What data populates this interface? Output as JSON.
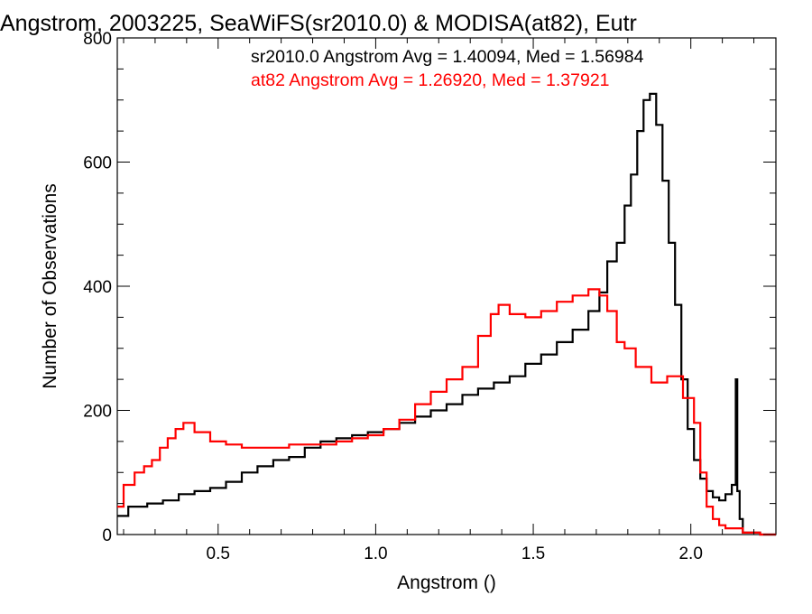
{
  "chart_data": {
    "type": "line",
    "title": "Angstrom, 2003225, SeaWiFS(sr2010.0) & MODISA(at82), Eutr",
    "xlabel": "Angstrom ()",
    "ylabel": "Number of Observations",
    "xlim": [
      0.18,
      2.27
    ],
    "ylim": [
      0,
      800
    ],
    "x_ticks": [
      0.5,
      1.0,
      1.5,
      2.0
    ],
    "x_tick_labels": [
      "0.5",
      "1.0",
      "1.5",
      "2.0"
    ],
    "y_ticks": [
      0,
      200,
      400,
      600,
      800
    ],
    "y_tick_labels": [
      "0",
      "200",
      "400",
      "600",
      "800"
    ],
    "step": true,
    "grid": false,
    "annotations": [
      {
        "text": "sr2010.0 Angstrom Avg = 1.40094, Med = 1.56984",
        "color": "#000000"
      },
      {
        "text": "at82 Angstrom Avg = 1.26920, Med = 1.37921",
        "color": "#ff0000"
      }
    ],
    "series": [
      {
        "color": "#000000",
        "x": [
          0.18,
          0.25,
          0.3,
          0.35,
          0.4,
          0.45,
          0.5,
          0.55,
          0.6,
          0.65,
          0.7,
          0.75,
          0.8,
          0.85,
          0.9,
          0.95,
          1.0,
          1.05,
          1.1,
          1.15,
          1.2,
          1.25,
          1.3,
          1.35,
          1.4,
          1.45,
          1.5,
          1.55,
          1.6,
          1.65,
          1.7,
          1.72,
          1.75,
          1.78,
          1.8,
          1.82,
          1.84,
          1.86,
          1.88,
          1.9,
          1.92,
          1.94,
          1.96,
          1.98,
          2.0,
          2.02,
          2.04,
          2.06,
          2.08,
          2.1,
          2.12,
          2.14,
          2.145,
          2.15,
          2.16,
          2.17,
          2.27
        ],
        "y": [
          30,
          45,
          50,
          55,
          65,
          70,
          75,
          85,
          100,
          110,
          120,
          125,
          140,
          150,
          155,
          160,
          165,
          170,
          180,
          190,
          200,
          210,
          225,
          235,
          245,
          255,
          275,
          290,
          310,
          330,
          360,
          390,
          440,
          470,
          530,
          580,
          650,
          700,
          710,
          660,
          570,
          470,
          370,
          250,
          170,
          120,
          90,
          70,
          60,
          55,
          65,
          80,
          250,
          70,
          25,
          3,
          0
        ]
      },
      {
        "color": "#ff0000",
        "x": [
          0.18,
          0.22,
          0.25,
          0.28,
          0.3,
          0.33,
          0.35,
          0.38,
          0.4,
          0.45,
          0.5,
          0.55,
          0.6,
          0.65,
          0.7,
          0.75,
          0.8,
          0.85,
          0.9,
          0.95,
          1.0,
          1.05,
          1.1,
          1.15,
          1.2,
          1.25,
          1.3,
          1.35,
          1.38,
          1.4,
          1.45,
          1.5,
          1.55,
          1.6,
          1.65,
          1.7,
          1.72,
          1.75,
          1.78,
          1.8,
          1.85,
          1.9,
          1.95,
          2.0,
          2.02,
          2.04,
          2.06,
          2.08,
          2.1,
          2.12,
          2.14,
          2.15,
          2.16,
          2.17,
          2.27
        ],
        "y": [
          45,
          80,
          100,
          110,
          120,
          140,
          155,
          170,
          180,
          165,
          150,
          145,
          140,
          140,
          140,
          145,
          145,
          145,
          150,
          155,
          160,
          170,
          185,
          210,
          230,
          250,
          270,
          320,
          355,
          370,
          355,
          350,
          360,
          375,
          385,
          395,
          385,
          360,
          310,
          300,
          270,
          245,
          255,
          220,
          180,
          100,
          45,
          25,
          15,
          10,
          10,
          10,
          10,
          3,
          0
        ]
      }
    ]
  }
}
